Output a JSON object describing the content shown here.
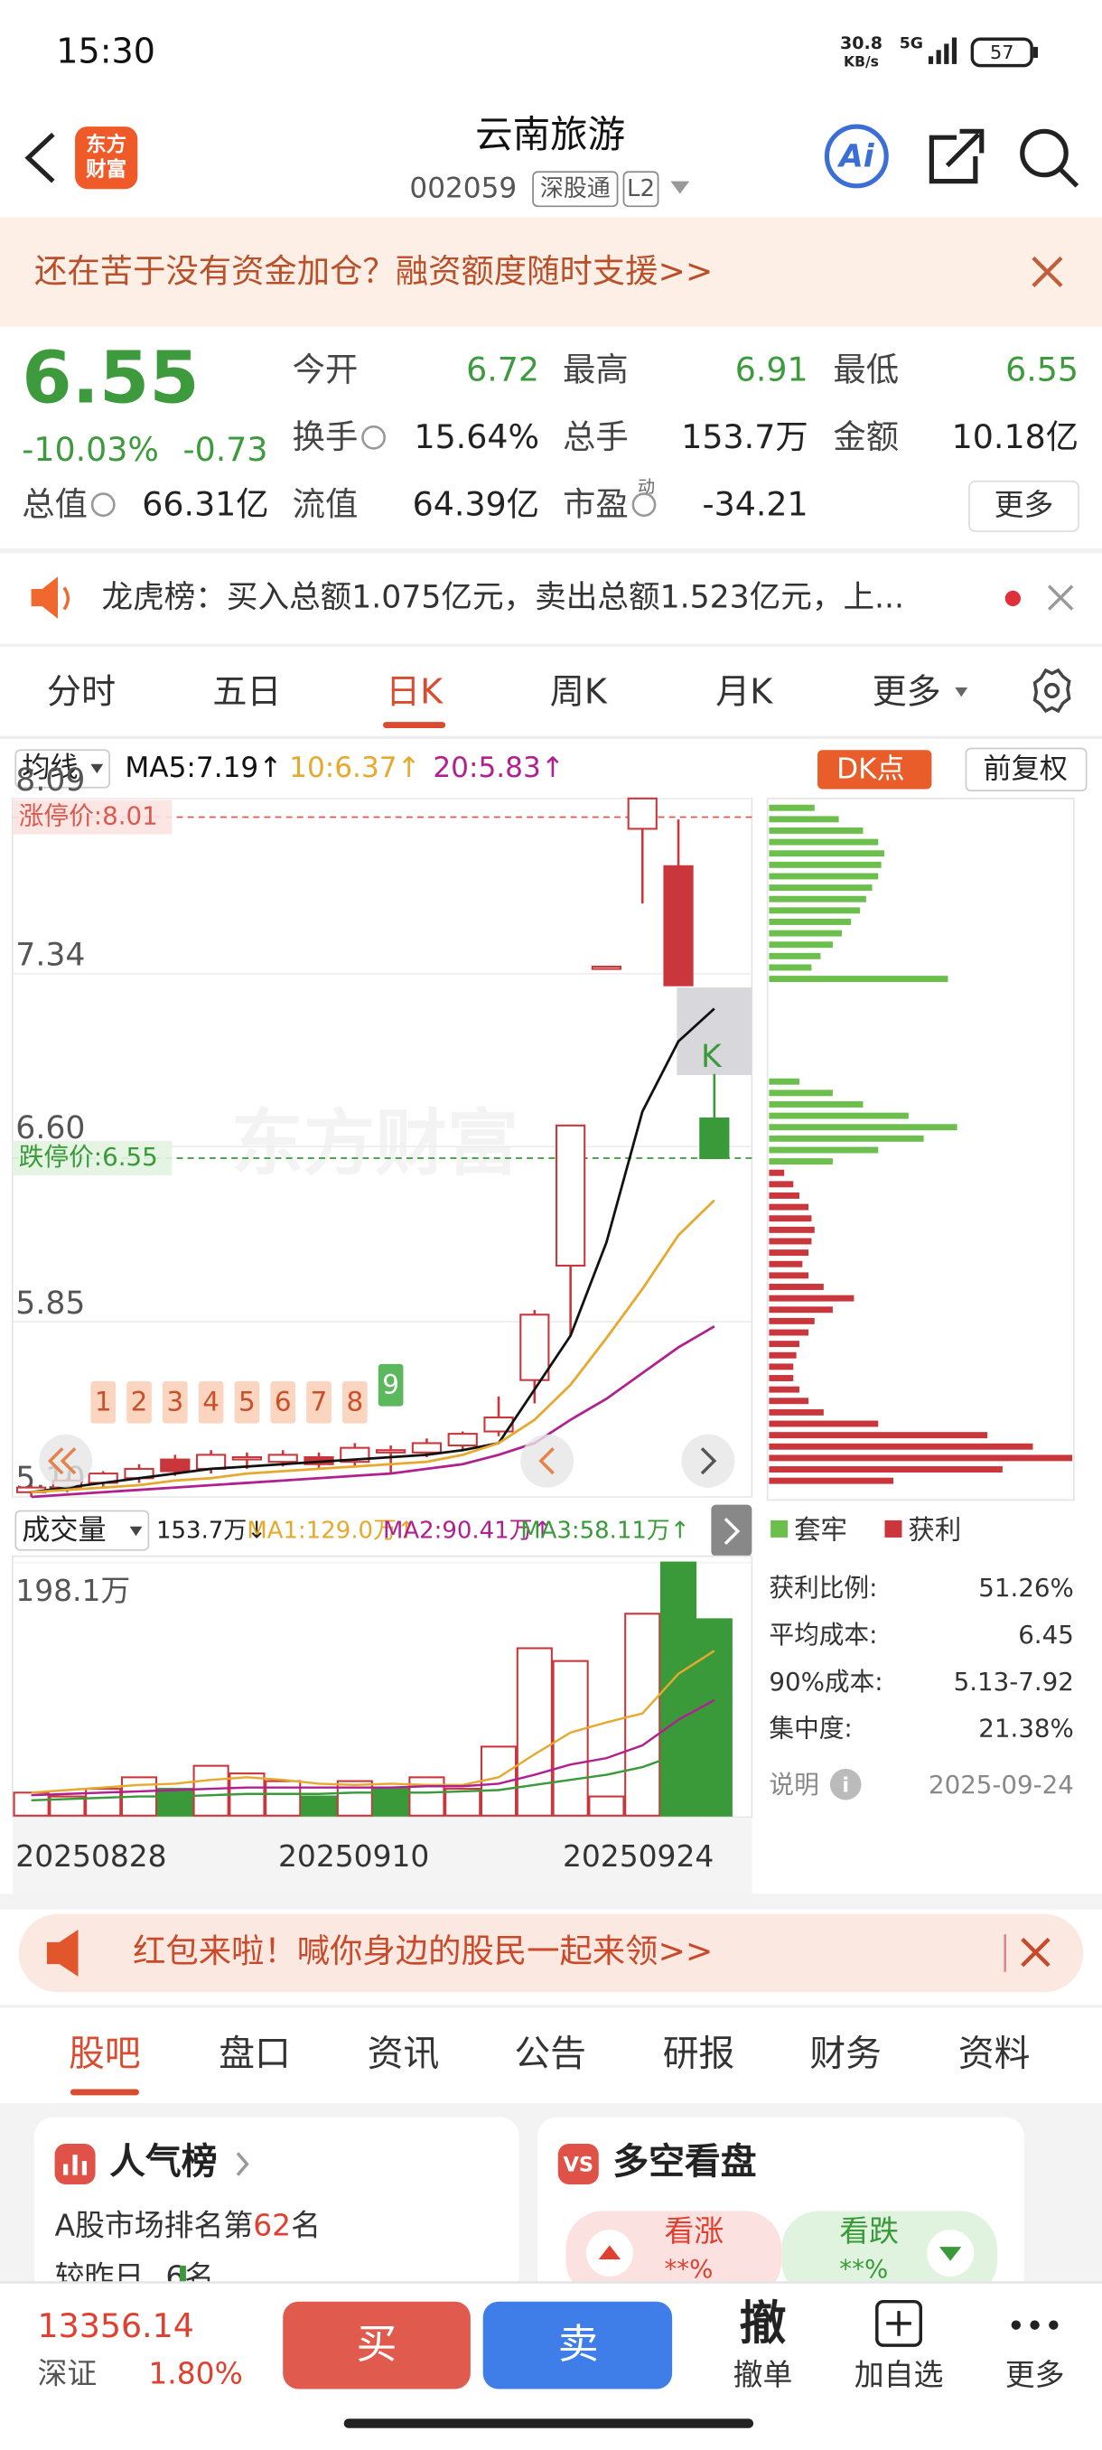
{
  "status": {
    "time": "15:30",
    "speed": "30.8",
    "speed_unit": "KB/s",
    "network": "5G",
    "battery": "57"
  },
  "header": {
    "logo": [
      "东方",
      "财富"
    ],
    "title": "云南旅游",
    "code": "002059",
    "tags": [
      "深股通",
      "L2"
    ],
    "ai": "Ai"
  },
  "banner": {
    "text": "还在苦于没有资金加仓？融资额度随时支援>>"
  },
  "quote": {
    "price": "6.55",
    "change_pct": "-10.03%",
    "change": "-0.73",
    "fields": [
      {
        "label": "今开",
        "value": "6.72"
      },
      {
        "label": "最高",
        "value": "6.91"
      },
      {
        "label": "最低",
        "value": "6.55"
      },
      {
        "label": "换手",
        "value": "15.64%"
      },
      {
        "label": "总手",
        "value": "153.7万"
      },
      {
        "label": "金额",
        "value": "10.18亿"
      },
      {
        "label": "总值",
        "value": "66.31亿"
      },
      {
        "label": "流值",
        "value": "64.39亿"
      },
      {
        "label": "市盈",
        "value": "-34.21",
        "sup": "动"
      }
    ],
    "more": "更多"
  },
  "notice": {
    "text": "龙虎榜：买入总额1.075亿元，卖出总额1.523亿元，上..."
  },
  "tabs": {
    "items": [
      "分时",
      "五日",
      "日K",
      "周K",
      "月K",
      "更多"
    ],
    "active": 2
  },
  "chart_data": [
    {
      "type": "candlestick",
      "indicator": "均线",
      "ma_labels": [
        "MA5:7.19↑",
        "10:6.37↑",
        "20:5.83↑"
      ],
      "ma_colors": [
        "#111111",
        "#e6a92e",
        "#b0208f"
      ],
      "buttons": [
        "DK点",
        "前复权"
      ],
      "watermark": "东方财富",
      "ylim": [
        5.1,
        8.09
      ],
      "yticks": [
        8.09,
        7.34,
        {
          "value": 6.6,
          "label": "6.60"
        },
        5.85,
        {
          "value": 5.1,
          "label": "5.10"
        }
      ],
      "limit_up": {
        "value": 8.01,
        "label": "涨停价:8.01"
      },
      "limit_down": {
        "value": 6.55,
        "label": "跌停价:6.55"
      },
      "candles": [
        {
          "o": 5.12,
          "h": 5.15,
          "l": 5.1,
          "c": 5.14,
          "style": "hollow"
        },
        {
          "o": 5.14,
          "h": 5.18,
          "l": 5.12,
          "c": 5.17,
          "style": "hollow"
        },
        {
          "o": 5.16,
          "h": 5.21,
          "l": 5.14,
          "c": 5.2,
          "style": "hollow"
        },
        {
          "o": 5.18,
          "h": 5.24,
          "l": 5.16,
          "c": 5.22,
          "style": "hollow"
        },
        {
          "o": 5.26,
          "h": 5.28,
          "l": 5.19,
          "c": 5.21,
          "style": "red"
        },
        {
          "o": 5.22,
          "h": 5.3,
          "l": 5.2,
          "c": 5.28,
          "style": "hollow"
        },
        {
          "o": 5.26,
          "h": 5.29,
          "l": 5.22,
          "c": 5.27,
          "style": "hollow"
        },
        {
          "o": 5.25,
          "h": 5.3,
          "l": 5.23,
          "c": 5.28,
          "style": "hollow"
        },
        {
          "o": 5.27,
          "h": 5.29,
          "l": 5.22,
          "c": 5.24,
          "style": "red"
        },
        {
          "o": 5.25,
          "h": 5.33,
          "l": 5.23,
          "c": 5.31,
          "style": "hollow"
        },
        {
          "o": 5.29,
          "h": 5.32,
          "l": 5.2,
          "c": 5.3,
          "style": "hollow"
        },
        {
          "o": 5.29,
          "h": 5.35,
          "l": 5.27,
          "c": 5.33,
          "style": "hollow"
        },
        {
          "o": 5.32,
          "h": 5.38,
          "l": 5.3,
          "c": 5.37,
          "style": "hollow"
        },
        {
          "o": 5.38,
          "h": 5.53,
          "l": 5.36,
          "c": 5.44,
          "style": "hollow"
        },
        {
          "o": 5.6,
          "h": 5.9,
          "l": 5.5,
          "c": 5.88,
          "style": "hollow"
        },
        {
          "o": 6.09,
          "h": 6.69,
          "l": 5.79,
          "c": 6.69,
          "style": "hollow"
        },
        {
          "o": 7.37,
          "h": 7.37,
          "l": 7.37,
          "c": 7.37,
          "style": "hollow"
        },
        {
          "o": 7.96,
          "h": 8.09,
          "l": 7.64,
          "c": 8.09,
          "style": "hollow"
        },
        {
          "o": 7.8,
          "h": 8.0,
          "l": 7.29,
          "c": 7.29,
          "style": "red"
        },
        {
          "o": 6.72,
          "h": 6.91,
          "l": 6.55,
          "c": 6.55,
          "style": "green"
        }
      ],
      "series": [
        {
          "color": "#111111",
          "values": [
            5.12,
            5.14,
            5.16,
            5.18,
            5.2,
            5.22,
            5.23,
            5.24,
            5.25,
            5.26,
            5.27,
            5.28,
            5.3,
            5.33,
            5.56,
            5.79,
            6.19,
            6.75,
            7.05,
            7.19
          ]
        },
        {
          "color": "#e6a92e",
          "values": [
            5.12,
            5.13,
            5.14,
            5.15,
            5.17,
            5.18,
            5.2,
            5.21,
            5.22,
            5.23,
            5.24,
            5.25,
            5.28,
            5.33,
            5.43,
            5.58,
            5.78,
            5.99,
            6.22,
            6.37
          ]
        },
        {
          "color": "#b0208f",
          "values": [
            5.1,
            5.11,
            5.12,
            5.13,
            5.14,
            5.15,
            5.16,
            5.17,
            5.18,
            5.19,
            5.2,
            5.22,
            5.24,
            5.28,
            5.33,
            5.43,
            5.52,
            5.63,
            5.74,
            5.83
          ]
        }
      ],
      "markers": [
        "1",
        "2",
        "3",
        "4",
        "5",
        "6",
        "7",
        "8",
        "9"
      ],
      "marker_k": "K"
    },
    {
      "type": "bar",
      "title": "成交量",
      "current": "153.7万↓",
      "ma_labels": [
        "MA1:129.0万↑",
        "MA2:90.41万↑",
        "MA3:58.11万↑"
      ],
      "ylim": [
        0,
        198.1
      ],
      "yticks": [
        {
          "value": 198.1,
          "label": "198.1万"
        }
      ],
      "values": [
        18,
        15,
        21,
        30,
        21,
        39,
        33,
        27,
        15,
        27,
        21,
        30,
        21,
        54,
        131,
        121,
        15,
        158,
        198.1,
        153.7
      ],
      "styles": [
        "hollow",
        "hollow",
        "hollow",
        "hollow",
        "green",
        "hollow",
        "hollow",
        "hollow",
        "green",
        "hollow",
        "green",
        "hollow",
        "hollow",
        "hollow",
        "hollow",
        "hollow",
        "hollow",
        "hollow",
        "green",
        "green"
      ],
      "series": [
        {
          "color": "#e6a92e",
          "values": [
            18,
            20,
            22,
            24,
            25,
            28,
            30,
            28,
            25,
            24,
            25,
            24,
            24,
            30,
            48,
            65,
            73,
            80,
            111,
            129.0
          ]
        },
        {
          "color": "#b0208f",
          "values": [
            16,
            17,
            18,
            19,
            20,
            21,
            22,
            22,
            22,
            22,
            22,
            23,
            23,
            25,
            32,
            40,
            45,
            55,
            75,
            90.41
          ]
        },
        {
          "color": "#3a9a3a",
          "values": [
            12,
            13,
            14,
            15,
            15,
            16,
            17,
            17,
            17,
            18,
            18,
            18,
            19,
            20,
            24,
            28,
            32,
            38,
            48,
            58.11
          ]
        }
      ],
      "date_labels": [
        "20250828",
        "20250910",
        "20250924"
      ]
    },
    {
      "type": "hbar",
      "series": [
        {
          "name": "套牢",
          "color": "#6cbf4c",
          "values": [
            15,
            23,
            31,
            36,
            38,
            37,
            36,
            34,
            32,
            30,
            27,
            24,
            21,
            17,
            14,
            59,
            null,
            null,
            null,
            null,
            null,
            null,
            null,
            null,
            10,
            21,
            31,
            46,
            62,
            51,
            36,
            21,
            null,
            null,
            null,
            null,
            null,
            null,
            null,
            null,
            null,
            null,
            null,
            null,
            null,
            null,
            null,
            null,
            null,
            null,
            null,
            null,
            null,
            null,
            null,
            null,
            null,
            null,
            null,
            null
          ]
        },
        {
          "name": "获利",
          "color": "#c9363c",
          "values": [
            null,
            null,
            null,
            null,
            null,
            null,
            null,
            null,
            null,
            null,
            null,
            null,
            null,
            null,
            null,
            null,
            null,
            null,
            null,
            null,
            null,
            null,
            null,
            null,
            null,
            null,
            null,
            null,
            null,
            null,
            null,
            null,
            5,
            8,
            10,
            13,
            14,
            15,
            14,
            13,
            11,
            13,
            18,
            28,
            21,
            15,
            13,
            10,
            9,
            8,
            8,
            10,
            13,
            18,
            36,
            72,
            87,
            100,
            77,
            41
          ]
        }
      ],
      "stats": [
        {
          "label": "获利比例:",
          "value": "51.26%"
        },
        {
          "label": "平均成本:",
          "value": "6.45"
        },
        {
          "label": "90%成本:",
          "value": "5.13-7.92"
        },
        {
          "label": "集中度:",
          "value": "21.38%"
        }
      ],
      "note": "说明",
      "date": "2025-09-24"
    }
  ],
  "promo": {
    "text": "红包来啦！喊你身边的股民一起来领>>"
  },
  "section_tabs": {
    "items": [
      "股吧",
      "盘口",
      "资讯",
      "公告",
      "研报",
      "财务",
      "资料"
    ],
    "active": 0
  },
  "cards": [
    {
      "title": "人气榜",
      "rank": [
        "A股市场排名第",
        "62",
        "名"
      ],
      "change": [
        "较昨日",
        "6名"
      ]
    },
    {
      "title": "多空看盘",
      "bull": "看涨",
      "bull_value": "**%",
      "bear": "看跌",
      "bear_value": "**%"
    }
  ],
  "bottom": {
    "index_value": "13356.14",
    "index_name": "深证",
    "index_change": "1.80%",
    "buy": "买",
    "sell": "卖",
    "cancel_icon": "撤",
    "cancel": "撤单",
    "watch": "加自选",
    "more": "更多"
  }
}
